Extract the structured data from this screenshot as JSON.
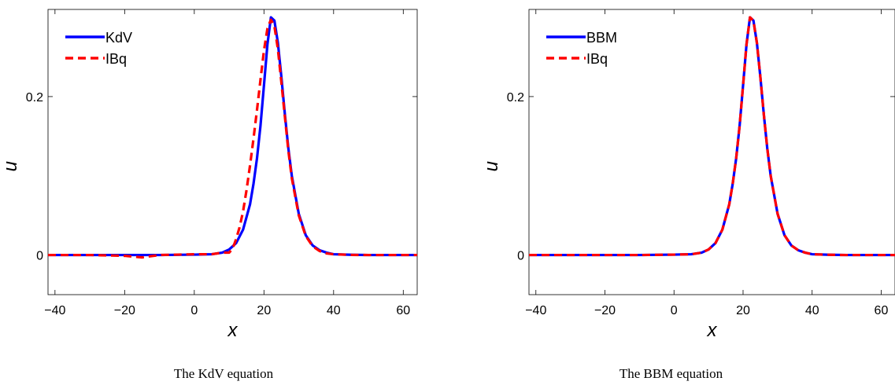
{
  "chart_data": [
    {
      "type": "line",
      "caption": "The KdV equation",
      "xlabel": "x",
      "ylabel": "u",
      "xlim": [
        -42,
        64
      ],
      "ylim": [
        -0.05,
        0.31
      ],
      "xticks": [
        -40,
        -20,
        0,
        20,
        40,
        60
      ],
      "yticks": [
        0,
        0.2
      ],
      "xtick_labels": [
        "−40",
        "−20",
        "0",
        "20",
        "40",
        "60"
      ],
      "ytick_labels": [
        "0",
        "0.2"
      ],
      "grid": false,
      "legend_position": "top-left",
      "series": [
        {
          "name": "KdV",
          "color": "#0000ff",
          "style": "solid",
          "x": [
            -42,
            -30,
            -20,
            -10,
            0,
            5,
            8,
            10,
            12,
            14,
            16,
            17,
            18,
            19,
            20,
            21,
            22,
            23,
            24,
            25,
            26,
            27,
            28,
            30,
            32,
            34,
            36,
            38,
            40,
            45,
            50,
            55,
            64
          ],
          "y": [
            0,
            0,
            0,
            0,
            0.0005,
            0.001,
            0.003,
            0.007,
            0.015,
            0.032,
            0.064,
            0.09,
            0.122,
            0.163,
            0.214,
            0.266,
            0.3,
            0.296,
            0.268,
            0.225,
            0.178,
            0.135,
            0.1,
            0.052,
            0.025,
            0.012,
            0.006,
            0.003,
            0.001,
            0.0003,
            0,
            0,
            0
          ]
        },
        {
          "name": "IBq",
          "color": "#ff0000",
          "style": "dashed",
          "x": [
            -42,
            -30,
            -20,
            -15,
            -10,
            0,
            5,
            8,
            10,
            11,
            12,
            13,
            14,
            15,
            16,
            17,
            18,
            19,
            20,
            21,
            22,
            23,
            24,
            25,
            26,
            27,
            28,
            30,
            32,
            34,
            36,
            38,
            40,
            45,
            50,
            55,
            64
          ],
          "y": [
            0,
            0,
            -0.001,
            -0.003,
            0,
            0.001,
            0.001,
            0.003,
            0.003,
            0.008,
            0.02,
            0.035,
            0.055,
            0.082,
            0.113,
            0.147,
            0.183,
            0.221,
            0.258,
            0.286,
            0.297,
            0.289,
            0.26,
            0.218,
            0.175,
            0.132,
            0.097,
            0.05,
            0.024,
            0.011,
            0.005,
            0.002,
            0.001,
            0.0002,
            0,
            0,
            0
          ]
        }
      ]
    },
    {
      "type": "line",
      "caption": "The BBM equation",
      "xlabel": "x",
      "ylabel": "u",
      "xlim": [
        -42,
        64
      ],
      "ylim": [
        -0.05,
        0.31
      ],
      "xticks": [
        -40,
        -20,
        0,
        20,
        40,
        60
      ],
      "yticks": [
        0,
        0.2
      ],
      "xtick_labels": [
        "−40",
        "−20",
        "0",
        "20",
        "40",
        "60"
      ],
      "ytick_labels": [
        "0",
        "0.2"
      ],
      "grid": false,
      "legend_position": "top-left",
      "series": [
        {
          "name": "BBM",
          "color": "#0000ff",
          "style": "solid",
          "x": [
            -42,
            -30,
            -20,
            -10,
            0,
            5,
            8,
            10,
            12,
            14,
            16,
            17,
            18,
            19,
            20,
            21,
            22,
            23,
            24,
            25,
            26,
            27,
            28,
            30,
            32,
            34,
            36,
            38,
            40,
            45,
            50,
            55,
            64
          ],
          "y": [
            0,
            0,
            0,
            0,
            0.0005,
            0.001,
            0.003,
            0.007,
            0.015,
            0.032,
            0.064,
            0.09,
            0.122,
            0.163,
            0.214,
            0.266,
            0.3,
            0.296,
            0.268,
            0.225,
            0.178,
            0.135,
            0.1,
            0.052,
            0.025,
            0.012,
            0.006,
            0.003,
            0.001,
            0.0003,
            0,
            0,
            0
          ]
        },
        {
          "name": "IBq",
          "color": "#ff0000",
          "style": "dashed",
          "x": [
            -42,
            -30,
            -20,
            -10,
            0,
            5,
            8,
            10,
            12,
            14,
            16,
            17,
            18,
            19,
            20,
            21,
            22,
            23,
            24,
            25,
            26,
            27,
            28,
            30,
            32,
            34,
            36,
            38,
            40,
            45,
            50,
            55,
            64
          ],
          "y": [
            0,
            0,
            0,
            0,
            0.0005,
            0.001,
            0.003,
            0.007,
            0.015,
            0.032,
            0.064,
            0.09,
            0.122,
            0.163,
            0.214,
            0.266,
            0.3,
            0.296,
            0.268,
            0.225,
            0.178,
            0.135,
            0.1,
            0.052,
            0.025,
            0.012,
            0.006,
            0.003,
            0.001,
            0.0003,
            0,
            0,
            0
          ]
        }
      ]
    }
  ]
}
